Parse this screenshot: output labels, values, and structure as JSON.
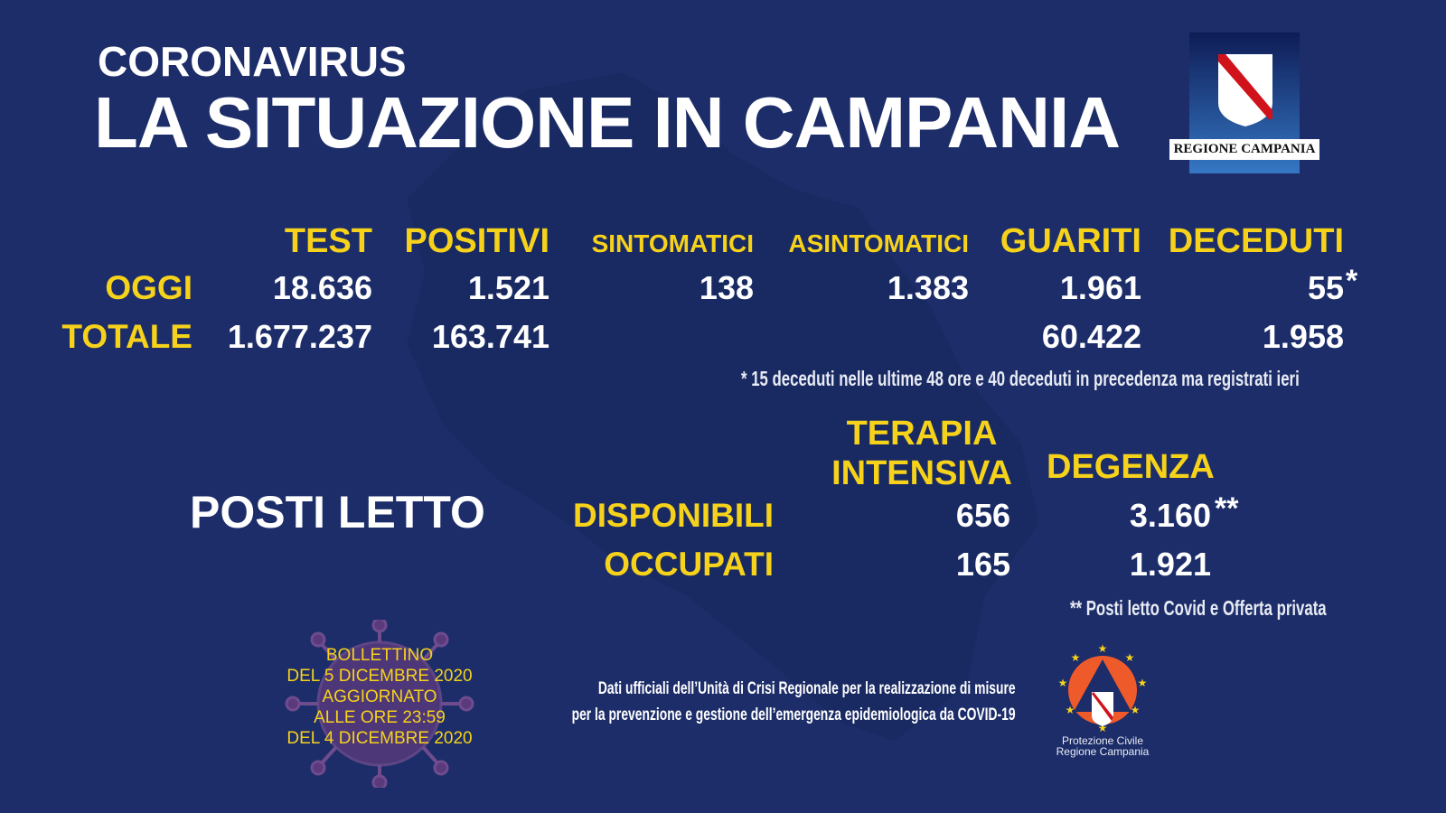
{
  "header": {
    "kicker": "CORONAVIRUS",
    "title": "LA SITUAZIONE IN CAMPANIA",
    "logo_text": "REGIONE CAMPANIA"
  },
  "stats": {
    "columns": [
      "TEST",
      "POSITIVI",
      "SINTOMATICI",
      "ASINTOMATICI",
      "GUARITI",
      "DECEDUTI"
    ],
    "rows": [
      {
        "label": "OGGI",
        "values": [
          "18.636",
          "1.521",
          "138",
          "1.383",
          "1.961",
          "55"
        ],
        "deceduti_mark": "*"
      },
      {
        "label": "TOTALE",
        "values": [
          "1.677.237",
          "163.741",
          "",
          "",
          "60.422",
          "1.958"
        ]
      }
    ],
    "footnote": "* 15 deceduti nelle ultime 48 ore e 40 deceduti in precedenza ma registrati ieri"
  },
  "beds": {
    "title": "POSTI LETTO",
    "col1": [
      "TERAPIA",
      "INTENSIVA"
    ],
    "col2": "DEGENZA",
    "rows": [
      {
        "label": "DISPONIBILI",
        "ti": "656",
        "deg": "3.160",
        "mark": "**"
      },
      {
        "label": "OCCUPATI",
        "ti": "165",
        "deg": "1.921"
      }
    ],
    "footnote": "** Posti letto Covid e Offerta privata"
  },
  "bulletin": [
    "BOLLETTINO",
    "DEL 5 DICEMBRE 2020",
    "AGGIORNATO",
    "ALLE ORE 23:59",
    "DEL 4 DICEMBRE 2020"
  ],
  "source": [
    "Dati ufficiali dell’Unità di Crisi Regionale per la realizzazione di misure",
    "per la prevenzione e gestione dell’emergenza epidemiologica da COVID-19"
  ],
  "protezione": [
    "Protezione Civile",
    "Regione Campania"
  ],
  "colors": {
    "background": "#1c2d69",
    "accent": "#f6d21b",
    "text": "#ffffff"
  }
}
